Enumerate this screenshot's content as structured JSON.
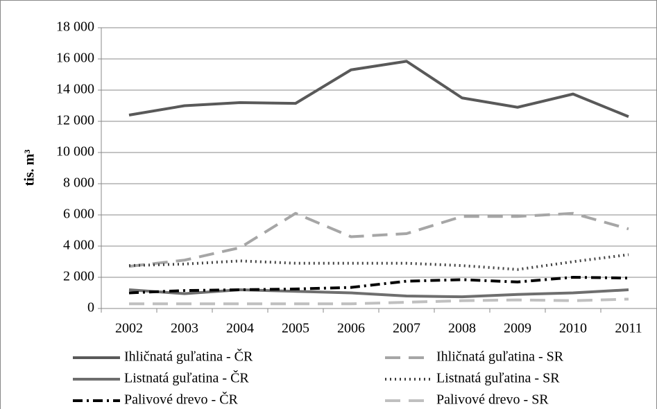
{
  "chart_data": {
    "type": "line",
    "y_label": "tis. m³",
    "categories": [
      "2002",
      "2003",
      "2004",
      "2005",
      "2006",
      "2007",
      "2008",
      "2009",
      "2010",
      "2011"
    ],
    "series": [
      {
        "name": "Ihličnatá guľatina - ČR",
        "color": "#595959",
        "dash": "solid",
        "values": [
          12400,
          13000,
          13200,
          13150,
          15300,
          15850,
          13500,
          12900,
          13750,
          12300
        ]
      },
      {
        "name": "Ihličnatá guľatina - SR",
        "color": "#a6a6a6",
        "dash": "dashed",
        "values": [
          2700,
          3100,
          3900,
          6100,
          4600,
          4800,
          5900,
          5900,
          6100,
          5100
        ]
      },
      {
        "name": "Listnatá guľatina - ČR",
        "color": "#6e6e6e",
        "dash": "solid",
        "values": [
          1200,
          950,
          1200,
          1100,
          1000,
          800,
          750,
          900,
          1000,
          1200
        ]
      },
      {
        "name": "Listnatá guľatina - SR",
        "color": "#404040",
        "dash": "dotted",
        "values": [
          2750,
          2850,
          3050,
          2900,
          2900,
          2900,
          2750,
          2500,
          3000,
          3450
        ]
      },
      {
        "name": "Palivové drevo - ČR",
        "color": "#000000",
        "dash": "dashdot",
        "values": [
          1000,
          1150,
          1200,
          1250,
          1350,
          1750,
          1850,
          1700,
          2000,
          1950
        ]
      },
      {
        "name": "Palivové drevo - SR",
        "color": "#c0c0c0",
        "dash": "dashed",
        "values": [
          300,
          300,
          300,
          300,
          300,
          400,
          500,
          550,
          500,
          600
        ]
      }
    ],
    "ylim": [
      0,
      18000
    ],
    "yticks": [
      0,
      {
        "value": 2000,
        "label": "2 000"
      },
      {
        "value": 4000,
        "label": "4 000"
      },
      {
        "value": 6000,
        "label": "6 000"
      },
      {
        "value": 8000,
        "label": "8 000"
      },
      {
        "value": 10000,
        "label": "10 000"
      },
      {
        "value": 12000,
        "label": "12 000"
      },
      {
        "value": 14000,
        "label": "14 000"
      },
      {
        "value": 16000,
        "label": "16 000"
      },
      {
        "value": 18000,
        "label": "18 000"
      }
    ],
    "grid": true
  }
}
